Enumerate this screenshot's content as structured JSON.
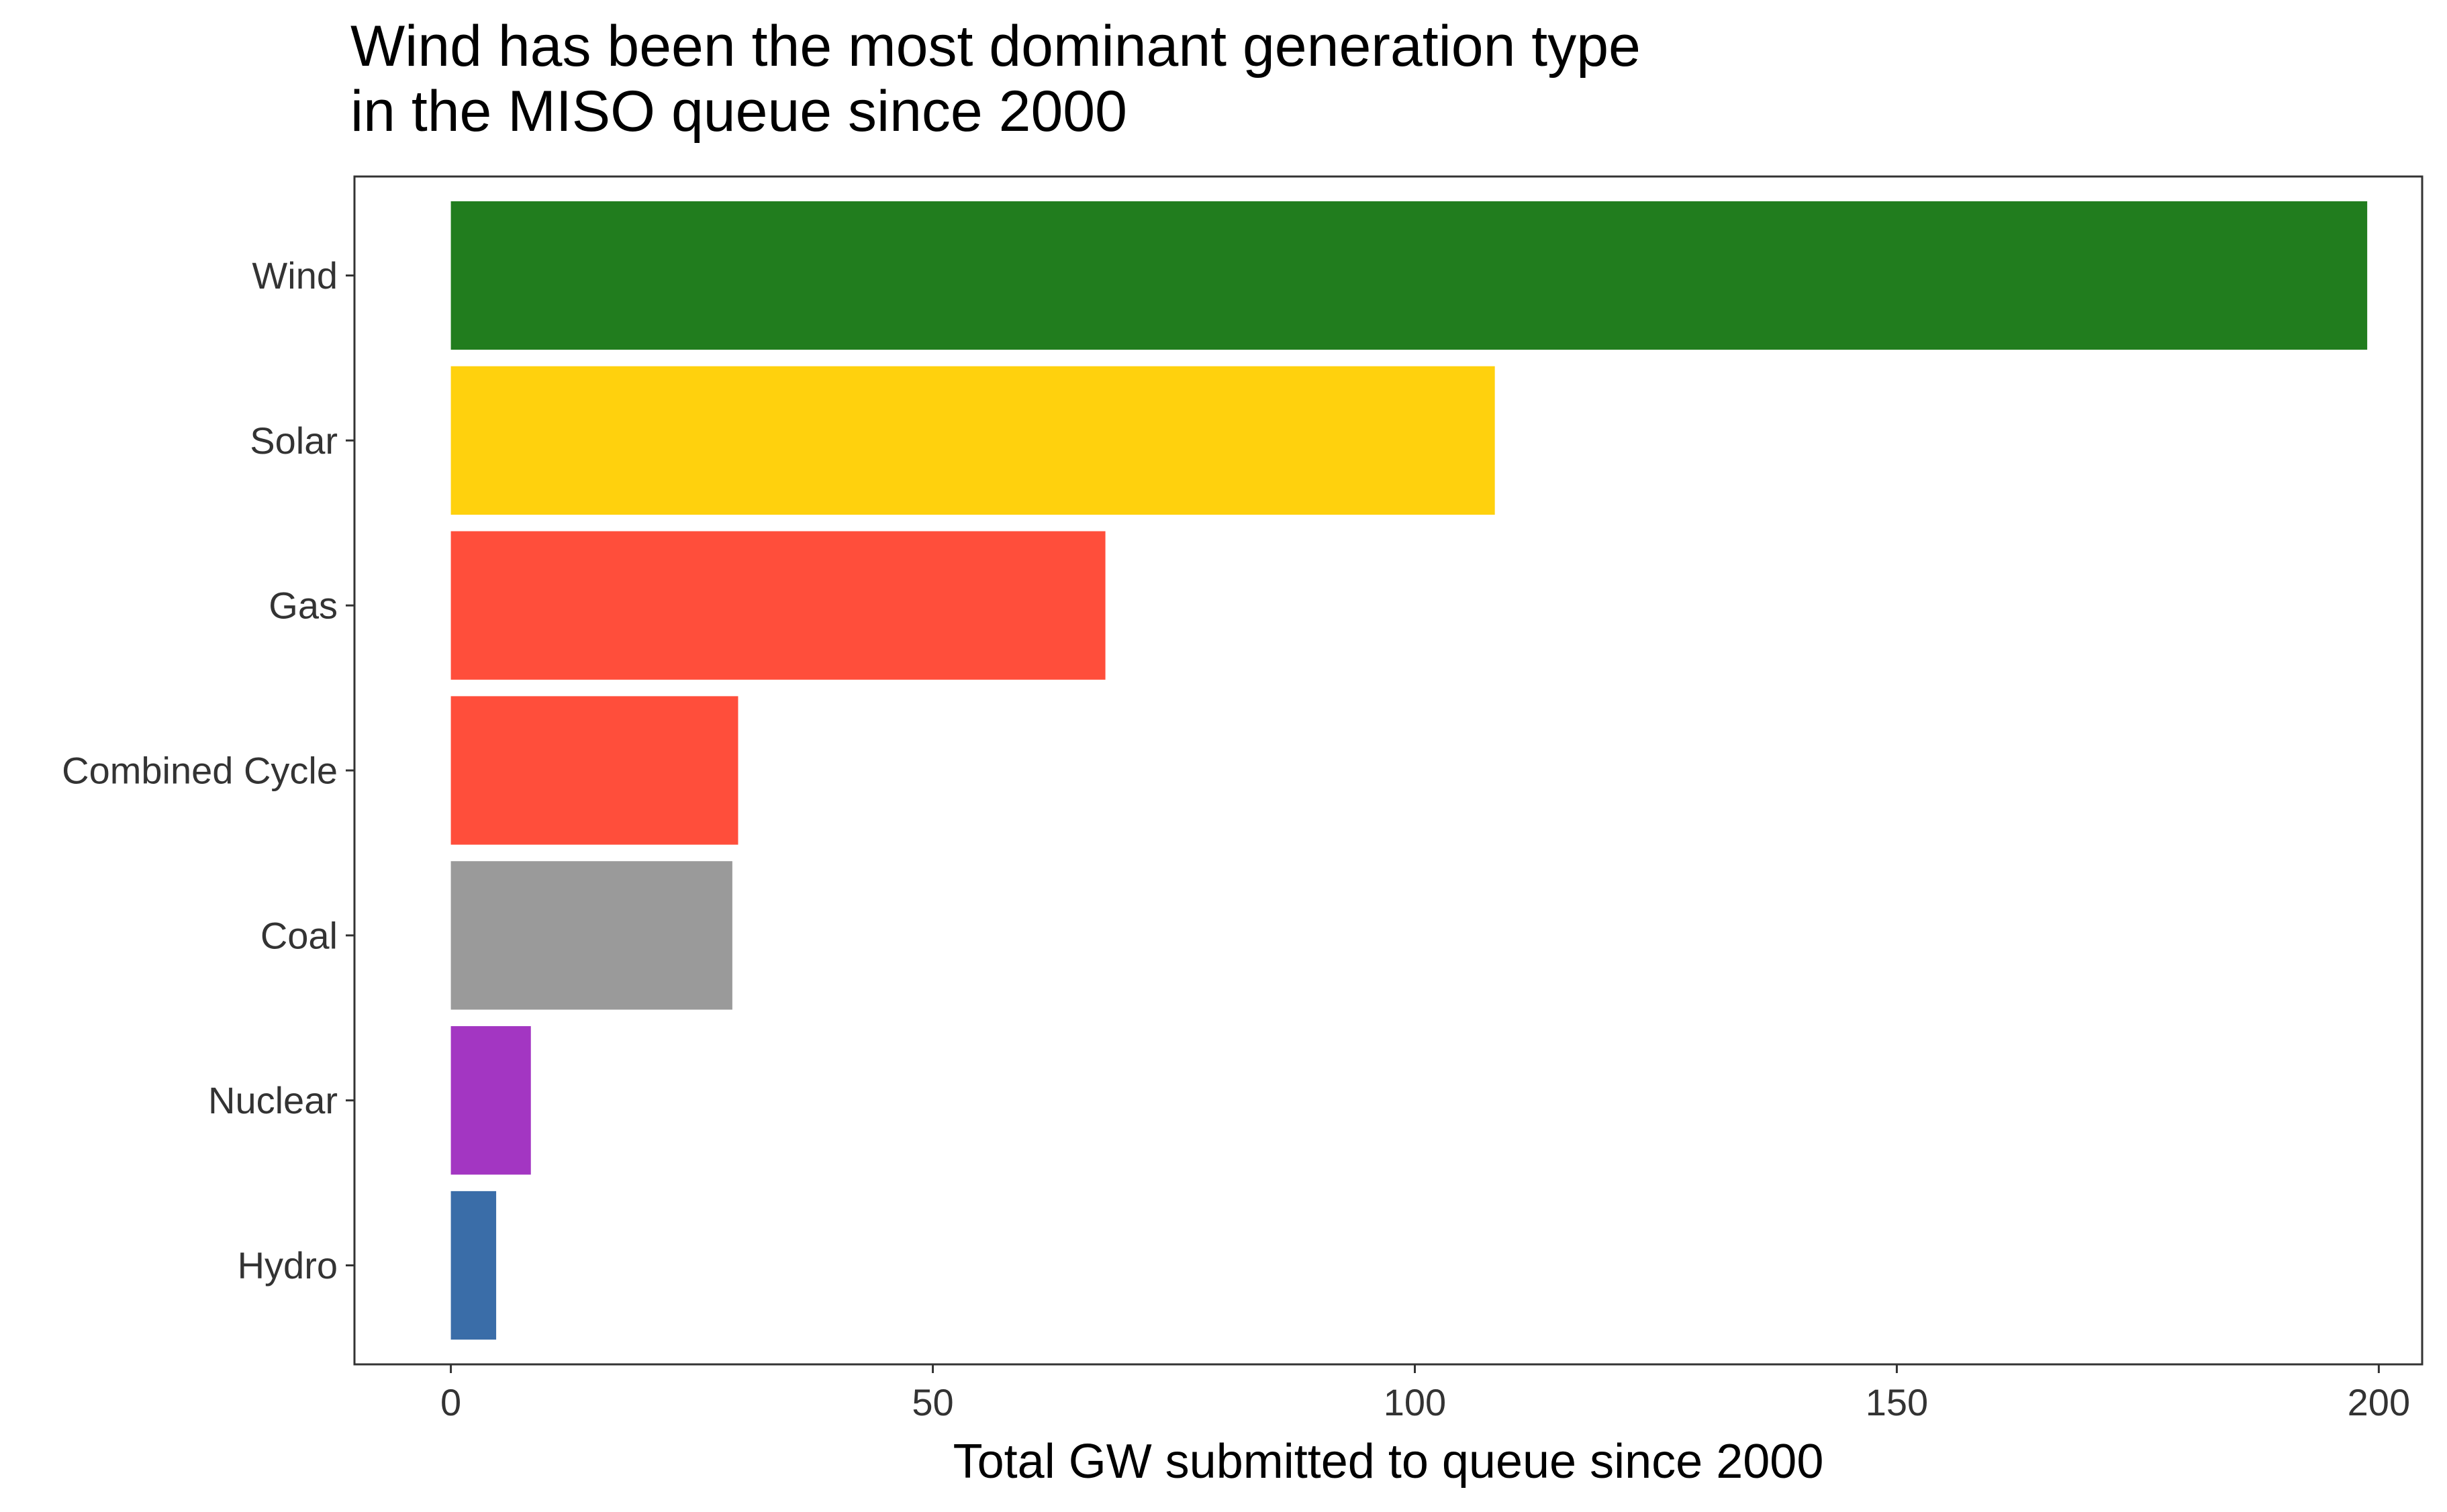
{
  "chart_data": {
    "type": "bar",
    "orientation": "horizontal",
    "title_lines": [
      "Wind has been the most dominant generation type",
      "in the MISO queue since 2000"
    ],
    "xlabel": "Total GW submitted to queue since 2000",
    "ylabel": "",
    "xlim": [
      -10,
      204.5
    ],
    "xticks": [
      0,
      50,
      100,
      150,
      200
    ],
    "categories": [
      "Wind",
      "Solar",
      "Gas",
      "Combined Cycle",
      "Coal",
      "Nuclear",
      "Hydro"
    ],
    "values": [
      198.8,
      108.3,
      67.9,
      29.8,
      29.2,
      8.3,
      4.7
    ],
    "colors": [
      "#217D1E",
      "#FFD10D",
      "#FF4E3B",
      "#FF4E3B",
      "#9A9A9A",
      "#A336C2",
      "#3A6DA8"
    ],
    "grid": false,
    "legend": "none"
  }
}
